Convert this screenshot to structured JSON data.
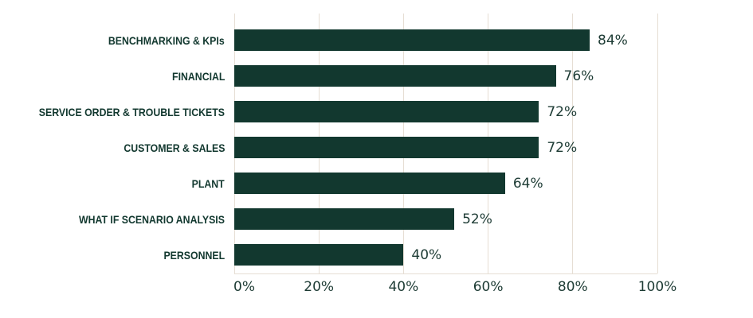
{
  "chart_data": {
    "type": "bar",
    "orientation": "horizontal",
    "title": "",
    "categories": [
      "BENCHMARKING & KPIs",
      "FINANCIAL",
      "SERVICE ORDER & TROUBLE TICKETS",
      "CUSTOMER & SALES",
      "PLANT",
      "WHAT IF SCENARIO ANALYSIS",
      "PERSONNEL"
    ],
    "values": [
      84,
      76,
      72,
      72,
      64,
      52,
      40
    ],
    "value_labels": [
      "84%",
      "76%",
      "72%",
      "72%",
      "64%",
      "52%",
      "40%"
    ],
    "x_ticks": [
      "0%",
      "20%",
      "40%",
      "60%",
      "80%",
      "100%"
    ],
    "x_tick_values": [
      0,
      20,
      40,
      60,
      80,
      100
    ],
    "xlim": [
      0,
      100
    ],
    "xlabel": "",
    "ylabel": "",
    "grid": true,
    "legend": false
  },
  "colors": {
    "bar": "#12382f",
    "gridline": "#e6ded4",
    "category_text": "#12382f",
    "number_text": "#1d3b34",
    "background": "#ffffff"
  }
}
